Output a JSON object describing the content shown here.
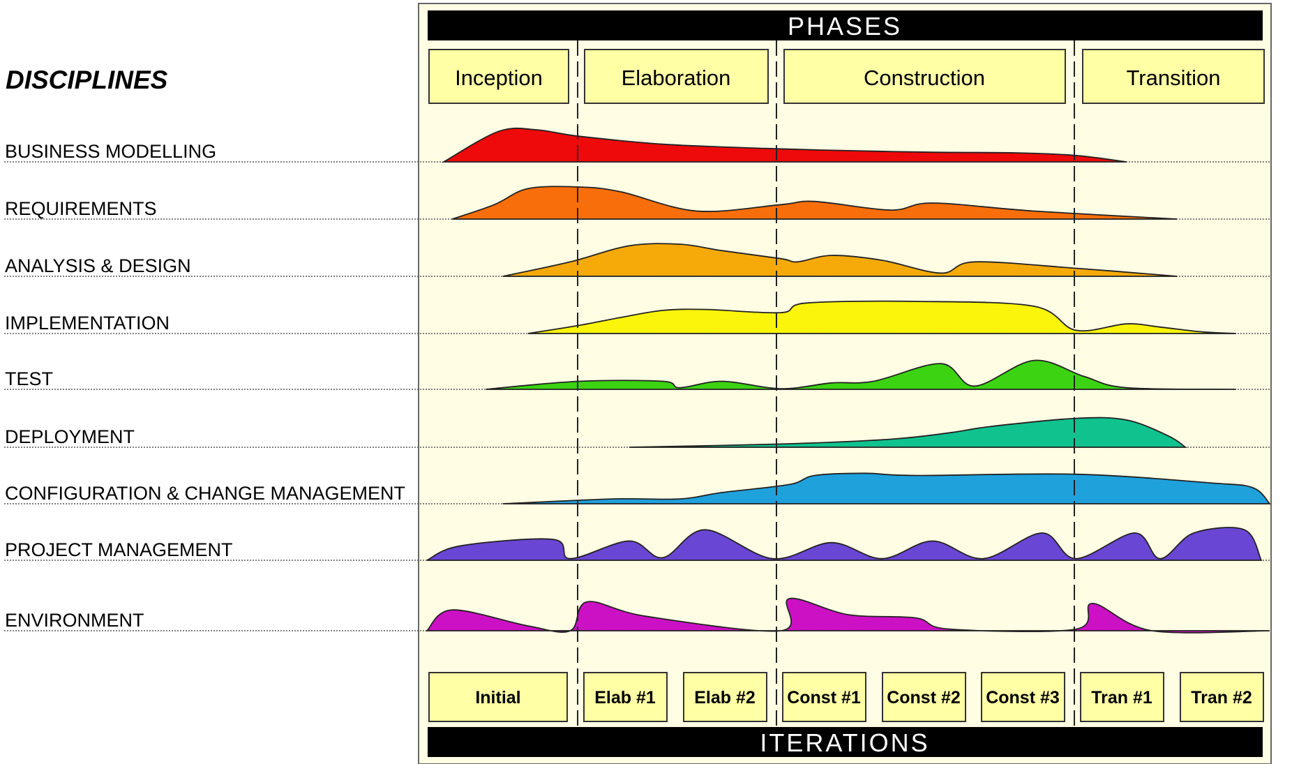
{
  "header": {
    "disciplines_title": "DISCIPLINES",
    "phases_band": "PHASES",
    "iterations_band": "ITERATIONS"
  },
  "phases": [
    {
      "label": "Inception"
    },
    {
      "label": "Elaboration"
    },
    {
      "label": "Construction"
    },
    {
      "label": "Transition"
    }
  ],
  "iterations": [
    {
      "label": "Initial"
    },
    {
      "label": "Elab #1"
    },
    {
      "label": "Elab #2"
    },
    {
      "label": "Const #1"
    },
    {
      "label": "Const #2"
    },
    {
      "label": "Const #3"
    },
    {
      "label": "Tran #1"
    },
    {
      "label": "Tran #2"
    }
  ],
  "disciplines": [
    {
      "label": "BUSINESS MODELLING",
      "color": "#ee0a0a",
      "profile": [
        [
          0.02,
          0
        ],
        [
          0.085,
          0.95
        ],
        [
          0.13,
          1
        ],
        [
          0.18,
          0.8
        ],
        [
          0.28,
          0.55
        ],
        [
          0.4,
          0.42
        ],
        [
          0.5,
          0.35
        ],
        [
          0.6,
          0.3
        ],
        [
          0.7,
          0.28
        ],
        [
          0.77,
          0.2
        ],
        [
          0.83,
          0
        ]
      ]
    },
    {
      "label": "REQUIREMENTS",
      "color": "#f76e0a",
      "profile": [
        [
          0.03,
          0
        ],
        [
          0.08,
          0.45
        ],
        [
          0.12,
          0.95
        ],
        [
          0.18,
          1
        ],
        [
          0.23,
          0.85
        ],
        [
          0.32,
          0.25
        ],
        [
          0.42,
          0.45
        ],
        [
          0.46,
          0.55
        ],
        [
          0.55,
          0.28
        ],
        [
          0.6,
          0.5
        ],
        [
          0.72,
          0.25
        ],
        [
          0.89,
          0
        ]
      ]
    },
    {
      "label": "ANALYSIS & DESIGN",
      "color": "#f6aa0a",
      "profile": [
        [
          0.09,
          0
        ],
        [
          0.17,
          0.45
        ],
        [
          0.24,
          0.95
        ],
        [
          0.3,
          1
        ],
        [
          0.35,
          0.8
        ],
        [
          0.42,
          0.55
        ],
        [
          0.44,
          0.45
        ],
        [
          0.48,
          0.65
        ],
        [
          0.54,
          0.5
        ],
        [
          0.61,
          0.1
        ],
        [
          0.65,
          0.45
        ],
        [
          0.77,
          0.25
        ],
        [
          0.89,
          0
        ]
      ]
    },
    {
      "label": "IMPLEMENTATION",
      "color": "#faf50a",
      "profile": [
        [
          0.12,
          0
        ],
        [
          0.18,
          0.25
        ],
        [
          0.23,
          0.5
        ],
        [
          0.28,
          0.72
        ],
        [
          0.33,
          0.75
        ],
        [
          0.42,
          0.65
        ],
        [
          0.45,
          0.95
        ],
        [
          0.58,
          1
        ],
        [
          0.72,
          0.85
        ],
        [
          0.77,
          0.1
        ],
        [
          0.83,
          0.3
        ],
        [
          0.87,
          0.2
        ],
        [
          0.92,
          0.05
        ],
        [
          0.96,
          0
        ]
      ]
    },
    {
      "label": "TEST",
      "color": "#3cd312",
      "profile": [
        [
          0.07,
          0
        ],
        [
          0.18,
          0.25
        ],
        [
          0.28,
          0.25
        ],
        [
          0.3,
          0.05
        ],
        [
          0.35,
          0.25
        ],
        [
          0.42,
          0.02
        ],
        [
          0.48,
          0.2
        ],
        [
          0.53,
          0.25
        ],
        [
          0.61,
          0.8
        ],
        [
          0.65,
          0.1
        ],
        [
          0.72,
          0.9
        ],
        [
          0.78,
          0.4
        ],
        [
          0.83,
          0.05
        ],
        [
          0.96,
          0
        ]
      ]
    },
    {
      "label": "DEPLOYMENT",
      "color": "#10c28e",
      "profile": [
        [
          0.24,
          0
        ],
        [
          0.42,
          0.1
        ],
        [
          0.55,
          0.25
        ],
        [
          0.62,
          0.45
        ],
        [
          0.67,
          0.65
        ],
        [
          0.77,
          0.9
        ],
        [
          0.83,
          0.85
        ],
        [
          0.88,
          0.35
        ],
        [
          0.9,
          0
        ]
      ]
    },
    {
      "label": "CONFIGURATION & CHANGE MANAGEMENT",
      "color": "#1fa1dc",
      "profile": [
        [
          0.09,
          0
        ],
        [
          0.22,
          0.15
        ],
        [
          0.3,
          0.15
        ],
        [
          0.35,
          0.35
        ],
        [
          0.43,
          0.6
        ],
        [
          0.46,
          0.88
        ],
        [
          0.52,
          0.95
        ],
        [
          0.58,
          0.88
        ],
        [
          0.77,
          0.92
        ],
        [
          0.93,
          0.65
        ],
        [
          0.98,
          0.5
        ],
        [
          1.0,
          0
        ]
      ]
    },
    {
      "label": "PROJECT MANAGEMENT",
      "color": "#6a46d4",
      "profile": [
        [
          0.0,
          0
        ],
        [
          0.04,
          0.45
        ],
        [
          0.15,
          0.65
        ],
        [
          0.17,
          0.05
        ],
        [
          0.24,
          0.6
        ],
        [
          0.28,
          0.08
        ],
        [
          0.33,
          0.95
        ],
        [
          0.41,
          0.05
        ],
        [
          0.48,
          0.55
        ],
        [
          0.54,
          0.05
        ],
        [
          0.6,
          0.6
        ],
        [
          0.66,
          0.05
        ],
        [
          0.73,
          0.85
        ],
        [
          0.77,
          0.05
        ],
        [
          0.84,
          0.85
        ],
        [
          0.87,
          0.05
        ],
        [
          0.91,
          0.85
        ],
        [
          0.97,
          0.95
        ],
        [
          0.99,
          0
        ]
      ]
    },
    {
      "label": "ENVIRONMENT",
      "color": "#cc11c4",
      "profile": [
        [
          0.0,
          0
        ],
        [
          0.03,
          0.65
        ],
        [
          0.12,
          0.15
        ],
        [
          0.17,
          0
        ],
        [
          0.19,
          0.9
        ],
        [
          0.26,
          0.45
        ],
        [
          0.42,
          0
        ],
        [
          0.43,
          1
        ],
        [
          0.5,
          0.5
        ],
        [
          0.58,
          0.4
        ],
        [
          0.62,
          0.05
        ],
        [
          0.77,
          0.05
        ],
        [
          0.79,
          0.85
        ],
        [
          0.86,
          0
        ],
        [
          1.0,
          0
        ]
      ]
    }
  ]
}
